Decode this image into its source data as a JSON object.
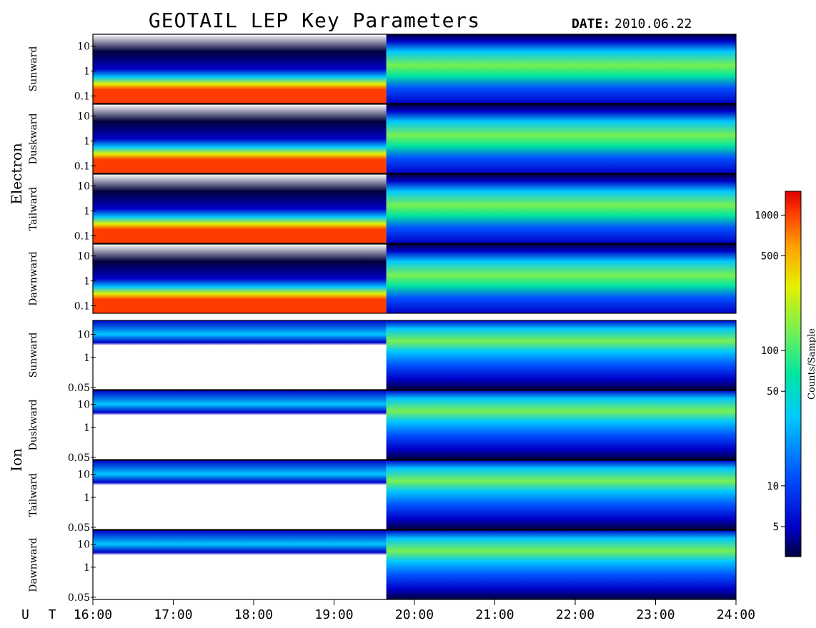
{
  "title": "GEOTAIL LEP Key Parameters",
  "date_label": "DATE:",
  "date_value": "2010.06.22",
  "ut_label": "U T",
  "colorbar": {
    "label": "Counts/Sample",
    "ticks": [
      "1000",
      "500",
      "100",
      "50",
      "10",
      "5"
    ],
    "tick_values": [
      1000,
      500,
      100,
      50,
      10,
      5
    ],
    "range": [
      3,
      1500
    ],
    "scale": "log",
    "colors": [
      "#00003c",
      "#0000c8",
      "#0050ff",
      "#00c8ff",
      "#00e6a0",
      "#78f050",
      "#e6f000",
      "#ffa000",
      "#ff3c00",
      "#dc0000"
    ]
  },
  "chart_data": {
    "type": "heatmap",
    "title": "GEOTAIL LEP Key Parameters",
    "x_axis": {
      "label": "U T",
      "ticks": [
        "16:00",
        "17:00",
        "18:00",
        "19:00",
        "20:00",
        "21:00",
        "22:00",
        "23:00",
        "24:00"
      ],
      "range_hours": [
        16,
        24
      ]
    },
    "groups": [
      {
        "name": "Electron",
        "panels": [
          {
            "name": "Sunward",
            "yticks": [
              "10",
              "1",
              "0.1"
            ],
            "ytick_values": [
              10,
              1,
              0.1
            ],
            "yrange": [
              0.05,
              30
            ],
            "scale": "log"
          },
          {
            "name": "Duskward",
            "yticks": [
              "10",
              "1",
              "0.1"
            ],
            "ytick_values": [
              10,
              1,
              0.1
            ],
            "yrange": [
              0.05,
              30
            ],
            "scale": "log"
          },
          {
            "name": "Tailward",
            "yticks": [
              "10",
              "1",
              "0.1"
            ],
            "ytick_values": [
              10,
              1,
              0.1
            ],
            "yrange": [
              0.05,
              30
            ],
            "scale": "log"
          },
          {
            "name": "Dawnward",
            "yticks": [
              "10",
              "1",
              "0.1"
            ],
            "ytick_values": [
              10,
              1,
              0.1
            ],
            "yrange": [
              0.05,
              30
            ],
            "scale": "log"
          }
        ]
      },
      {
        "name": "Ion",
        "panels": [
          {
            "name": "Sunward",
            "yticks": [
              "10",
              "1",
              "0.05"
            ],
            "ytick_values": [
              10,
              1,
              0.05
            ],
            "yrange": [
              0.04,
              40
            ],
            "scale": "log"
          },
          {
            "name": "Duskward",
            "yticks": [
              "10",
              "1",
              "0.05"
            ],
            "ytick_values": [
              10,
              1,
              0.05
            ],
            "yrange": [
              0.04,
              40
            ],
            "scale": "log"
          },
          {
            "name": "Tailward",
            "yticks": [
              "10",
              "1",
              "0.05"
            ],
            "ytick_values": [
              10,
              1,
              0.05
            ],
            "yrange": [
              0.04,
              40
            ],
            "scale": "log"
          },
          {
            "name": "Dawnward",
            "yticks": [
              "10",
              "1",
              "0.05"
            ],
            "ytick_values": [
              10,
              1,
              0.05
            ],
            "yrange": [
              0.04,
              40
            ],
            "scale": "log"
          }
        ]
      }
    ]
  }
}
